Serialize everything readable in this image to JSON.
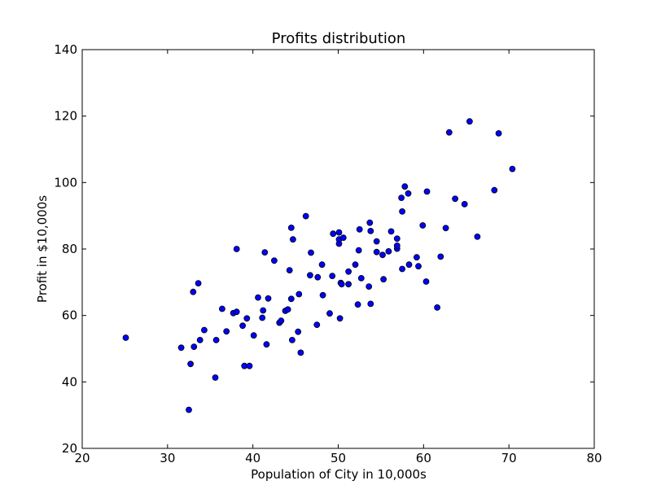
{
  "chart_data": {
    "type": "scatter",
    "title": "Profits distribution",
    "xlabel": "Population of City in 10,000s",
    "ylabel": "Profit in $10,000s",
    "xlim": [
      20,
      80
    ],
    "ylim": [
      20,
      140
    ],
    "xticks": [
      "20",
      "30",
      "40",
      "50",
      "60",
      "70",
      "80"
    ],
    "yticks": [
      "20",
      "40",
      "60",
      "80",
      "100",
      "120",
      "140"
    ],
    "grid": false,
    "marker_color": "#0000ff",
    "marker_edge_color": "#000000",
    "points": [
      [
        25.1,
        53.3
      ],
      [
        31.6,
        50.3
      ],
      [
        32.5,
        31.6
      ],
      [
        32.7,
        45.4
      ],
      [
        33.0,
        67.1
      ],
      [
        33.1,
        50.6
      ],
      [
        33.6,
        69.7
      ],
      [
        33.8,
        52.6
      ],
      [
        34.3,
        55.6
      ],
      [
        35.6,
        41.3
      ],
      [
        35.7,
        52.6
      ],
      [
        36.4,
        62.0
      ],
      [
        36.9,
        55.2
      ],
      [
        37.7,
        60.7
      ],
      [
        38.1,
        61.1
      ],
      [
        38.1,
        80.0
      ],
      [
        38.8,
        56.9
      ],
      [
        39.0,
        44.8
      ],
      [
        39.3,
        59.1
      ],
      [
        39.6,
        44.8
      ],
      [
        40.1,
        54.0
      ],
      [
        40.6,
        65.4
      ],
      [
        41.1,
        59.3
      ],
      [
        41.2,
        61.5
      ],
      [
        41.4,
        79.0
      ],
      [
        41.6,
        51.3
      ],
      [
        41.8,
        65.1
      ],
      [
        42.5,
        76.5
      ],
      [
        43.1,
        57.8
      ],
      [
        43.3,
        58.4
      ],
      [
        43.8,
        61.4
      ],
      [
        44.1,
        61.8
      ],
      [
        44.3,
        73.6
      ],
      [
        44.5,
        65.0
      ],
      [
        44.5,
        86.4
      ],
      [
        44.6,
        52.6
      ],
      [
        44.7,
        82.9
      ],
      [
        45.3,
        55.1
      ],
      [
        45.4,
        66.4
      ],
      [
        45.6,
        48.8
      ],
      [
        46.2,
        89.9
      ],
      [
        46.7,
        72.1
      ],
      [
        46.8,
        78.9
      ],
      [
        47.5,
        57.2
      ],
      [
        47.6,
        71.5
      ],
      [
        48.1,
        75.3
      ],
      [
        48.2,
        66.1
      ],
      [
        49.0,
        60.6
      ],
      [
        49.3,
        71.9
      ],
      [
        49.4,
        84.6
      ],
      [
        50.1,
        81.6
      ],
      [
        50.1,
        82.9
      ],
      [
        50.1,
        85.0
      ],
      [
        50.2,
        59.1
      ],
      [
        50.3,
        69.8
      ],
      [
        50.4,
        69.4
      ],
      [
        50.6,
        83.4
      ],
      [
        51.2,
        69.4
      ],
      [
        51.2,
        73.2
      ],
      [
        52.0,
        75.3
      ],
      [
        52.3,
        63.3
      ],
      [
        52.4,
        79.6
      ],
      [
        52.5,
        85.9
      ],
      [
        52.7,
        71.2
      ],
      [
        53.6,
        68.7
      ],
      [
        53.7,
        87.9
      ],
      [
        53.8,
        63.5
      ],
      [
        53.8,
        85.4
      ],
      [
        54.5,
        79.1
      ],
      [
        54.5,
        82.3
      ],
      [
        55.2,
        78.2
      ],
      [
        55.3,
        70.9
      ],
      [
        55.9,
        79.3
      ],
      [
        56.2,
        85.3
      ],
      [
        56.9,
        80.1
      ],
      [
        56.9,
        81.0
      ],
      [
        56.9,
        83.1
      ],
      [
        57.4,
        95.4
      ],
      [
        57.5,
        91.3
      ],
      [
        57.5,
        74.0
      ],
      [
        57.8,
        98.8
      ],
      [
        58.2,
        96.7
      ],
      [
        58.3,
        75.3
      ],
      [
        59.2,
        77.5
      ],
      [
        59.4,
        74.8
      ],
      [
        59.9,
        87.1
      ],
      [
        60.3,
        70.2
      ],
      [
        60.4,
        97.3
      ],
      [
        61.6,
        62.4
      ],
      [
        62.0,
        77.7
      ],
      [
        62.6,
        86.3
      ],
      [
        63.0,
        115.1
      ],
      [
        63.7,
        95.1
      ],
      [
        64.8,
        93.5
      ],
      [
        65.4,
        118.4
      ],
      [
        66.3,
        83.7
      ],
      [
        68.3,
        97.7
      ],
      [
        68.8,
        114.8
      ],
      [
        70.4,
        104.1
      ]
    ]
  }
}
